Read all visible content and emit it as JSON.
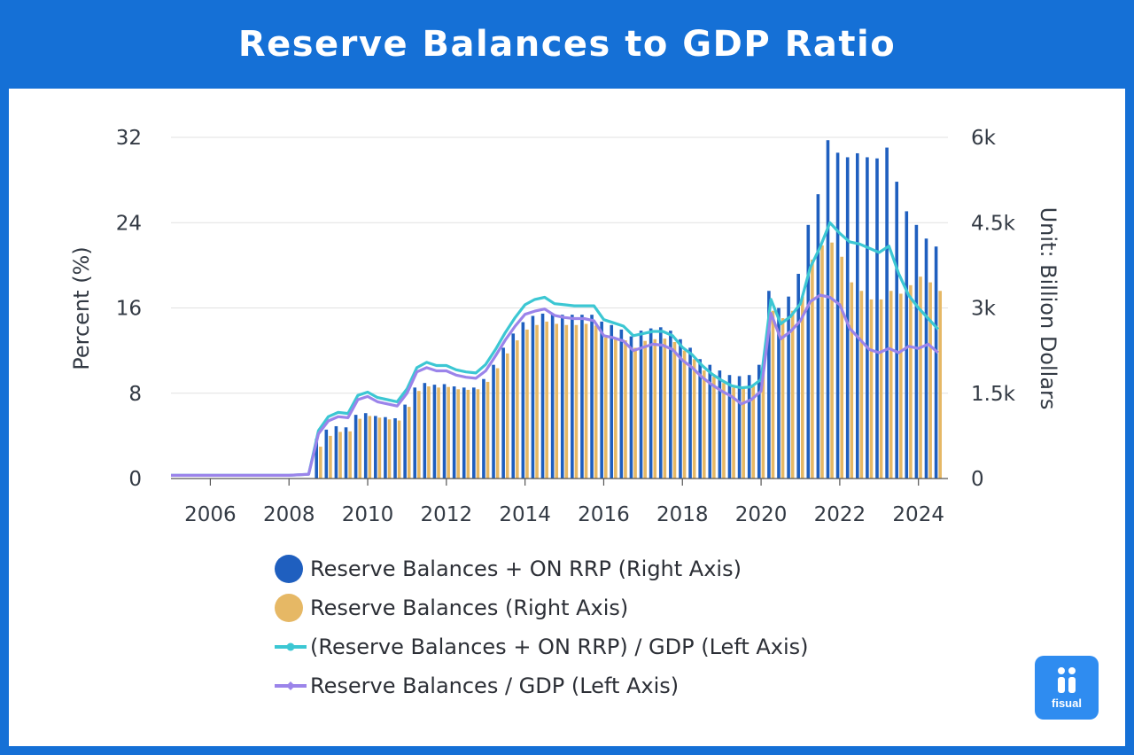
{
  "header": {
    "title": "Reserve Balances to GDP Ratio"
  },
  "brand": {
    "logo_text": "fisual",
    "logo_icon": "fisual-logo-icon"
  },
  "colors": {
    "background": "#1570d6",
    "bars_total": "#1f5fbf",
    "bars_reserve": "#e6b865",
    "line_total": "#3cc7d3",
    "line_reserve": "#9b84ea",
    "grid": "#e1e1e1"
  },
  "chart_data": {
    "type": "bar",
    "title": "Reserve Balances to GDP Ratio",
    "ylabel": "Percent (%)",
    "y2label": "Unit: Billion Dollars",
    "ylim": [
      0,
      32
    ],
    "y2lim": [
      0,
      6000
    ],
    "yticks": [
      "0",
      "8",
      "16",
      "24",
      "32"
    ],
    "y2ticks": [
      "0",
      "1.5k",
      "3k",
      "4.5k",
      "6k"
    ],
    "xticks": [
      "2006",
      "2008",
      "2010",
      "2012",
      "2014",
      "2016",
      "2018",
      "2020",
      "2022",
      "2024"
    ],
    "xlim": [
      2005.0,
      2024.75
    ],
    "legend_position": "bottom",
    "grid": true,
    "series": [
      {
        "name": "Reserve Balances + ON RRP (Right Axis)",
        "type": "bar",
        "axis": "right",
        "x": [
          2008.75,
          2009.0,
          2009.25,
          2009.5,
          2009.75,
          2010.0,
          2010.25,
          2010.5,
          2010.75,
          2011.0,
          2011.25,
          2011.5,
          2011.75,
          2012.0,
          2012.25,
          2012.5,
          2012.75,
          2013.0,
          2013.25,
          2013.5,
          2013.75,
          2014.0,
          2014.25,
          2014.5,
          2014.75,
          2015.0,
          2015.25,
          2015.5,
          2015.75,
          2016.0,
          2016.25,
          2016.5,
          2016.75,
          2017.0,
          2017.25,
          2017.5,
          2017.75,
          2018.0,
          2018.25,
          2018.5,
          2018.75,
          2019.0,
          2019.25,
          2019.5,
          2019.75,
          2020.0,
          2020.25,
          2020.5,
          2020.75,
          2021.0,
          2021.25,
          2021.5,
          2021.75,
          2022.0,
          2022.25,
          2022.5,
          2022.75,
          2023.0,
          2023.25,
          2023.5,
          2023.75,
          2024.0,
          2024.25,
          2024.5
        ],
        "values": [
          700,
          860,
          920,
          900,
          1120,
          1150,
          1100,
          1080,
          1060,
          1300,
          1600,
          1680,
          1650,
          1660,
          1620,
          1600,
          1600,
          1750,
          2000,
          2300,
          2550,
          2750,
          2860,
          2900,
          2880,
          2880,
          2880,
          2880,
          2880,
          2760,
          2700,
          2620,
          2500,
          2600,
          2640,
          2660,
          2600,
          2450,
          2300,
          2100,
          2000,
          1900,
          1820,
          1800,
          1820,
          2000,
          3300,
          3000,
          3200,
          3600,
          4460,
          5000,
          5950,
          5730,
          5650,
          5720,
          5650,
          5630,
          5820,
          5220,
          4700,
          4460,
          4220,
          4080
        ]
      },
      {
        "name": "Reserve Balances (Right Axis)",
        "type": "bar",
        "axis": "right",
        "x": [
          2008.75,
          2009.0,
          2009.25,
          2009.5,
          2009.75,
          2010.0,
          2010.25,
          2010.5,
          2010.75,
          2011.0,
          2011.25,
          2011.5,
          2011.75,
          2012.0,
          2012.25,
          2012.5,
          2012.75,
          2013.0,
          2013.25,
          2013.5,
          2013.75,
          2014.0,
          2014.25,
          2014.5,
          2014.75,
          2015.0,
          2015.25,
          2015.5,
          2015.75,
          2016.0,
          2016.25,
          2016.5,
          2016.75,
          2017.0,
          2017.25,
          2017.5,
          2017.75,
          2018.0,
          2018.25,
          2018.5,
          2018.75,
          2019.0,
          2019.25,
          2019.5,
          2019.75,
          2020.0,
          2020.25,
          2020.5,
          2020.75,
          2021.0,
          2021.25,
          2021.5,
          2021.75,
          2022.0,
          2022.25,
          2022.5,
          2022.75,
          2023.0,
          2023.25,
          2023.5,
          2023.75,
          2024.0,
          2024.25,
          2024.5
        ],
        "values": [
          560,
          750,
          820,
          830,
          1050,
          1100,
          1070,
          1040,
          1020,
          1260,
          1540,
          1620,
          1600,
          1610,
          1570,
          1560,
          1570,
          1700,
          1940,
          2200,
          2430,
          2620,
          2700,
          2760,
          2720,
          2700,
          2700,
          2720,
          2690,
          2480,
          2460,
          2430,
          2300,
          2420,
          2450,
          2460,
          2400,
          2250,
          2100,
          1900,
          1790,
          1680,
          1600,
          1580,
          1620,
          1850,
          2950,
          2820,
          2950,
          3200,
          3850,
          4100,
          4150,
          3900,
          3450,
          3300,
          3150,
          3150,
          3300,
          3250,
          3400,
          3550,
          3450,
          3300
        ]
      },
      {
        "name": "(Reserve Balances + ON RRP) / GDP (Left Axis)",
        "type": "line",
        "axis": "left",
        "x": [
          2005.0,
          2005.5,
          2006.0,
          2006.5,
          2007.0,
          2007.5,
          2008.0,
          2008.5,
          2008.75,
          2009.0,
          2009.25,
          2009.5,
          2009.75,
          2010.0,
          2010.25,
          2010.5,
          2010.75,
          2011.0,
          2011.25,
          2011.5,
          2011.75,
          2012.0,
          2012.25,
          2012.5,
          2012.75,
          2013.0,
          2013.25,
          2013.5,
          2013.75,
          2014.0,
          2014.25,
          2014.5,
          2014.75,
          2015.0,
          2015.25,
          2015.5,
          2015.75,
          2016.0,
          2016.25,
          2016.5,
          2016.75,
          2017.0,
          2017.25,
          2017.5,
          2017.75,
          2018.0,
          2018.25,
          2018.5,
          2018.75,
          2019.0,
          2019.25,
          2019.5,
          2019.75,
          2020.0,
          2020.25,
          2020.5,
          2020.75,
          2021.0,
          2021.25,
          2021.5,
          2021.75,
          2022.0,
          2022.25,
          2022.5,
          2022.75,
          2023.0,
          2023.25,
          2023.5,
          2023.75,
          2024.0,
          2024.25,
          2024.5
        ],
        "values": [
          0.3,
          0.3,
          0.3,
          0.3,
          0.3,
          0.3,
          0.3,
          0.4,
          4.5,
          5.8,
          6.2,
          6.1,
          7.8,
          8.1,
          7.6,
          7.4,
          7.2,
          8.4,
          10.4,
          10.9,
          10.6,
          10.6,
          10.2,
          10.0,
          9.9,
          10.7,
          12.1,
          13.7,
          15.1,
          16.3,
          16.8,
          17.0,
          16.4,
          16.3,
          16.2,
          16.2,
          16.2,
          14.9,
          14.6,
          14.3,
          13.4,
          13.6,
          13.8,
          13.8,
          13.4,
          12.3,
          11.6,
          10.6,
          9.8,
          9.2,
          8.7,
          8.5,
          8.6,
          9.3,
          16.8,
          14.5,
          15.2,
          16.4,
          19.8,
          21.7,
          24.0,
          23.0,
          22.2,
          22.0,
          21.6,
          21.2,
          21.8,
          19.2,
          17.2,
          16.0,
          15.0,
          14.0
        ]
      },
      {
        "name": "Reserve Balances / GDP (Left Axis)",
        "type": "line",
        "axis": "left",
        "x": [
          2005.0,
          2005.5,
          2006.0,
          2006.5,
          2007.0,
          2007.5,
          2008.0,
          2008.5,
          2008.75,
          2009.0,
          2009.25,
          2009.5,
          2009.75,
          2010.0,
          2010.25,
          2010.5,
          2010.75,
          2011.0,
          2011.25,
          2011.5,
          2011.75,
          2012.0,
          2012.25,
          2012.5,
          2012.75,
          2013.0,
          2013.25,
          2013.5,
          2013.75,
          2014.0,
          2014.25,
          2014.5,
          2014.75,
          2015.0,
          2015.25,
          2015.5,
          2015.75,
          2016.0,
          2016.25,
          2016.5,
          2016.75,
          2017.0,
          2017.25,
          2017.5,
          2017.75,
          2018.0,
          2018.25,
          2018.5,
          2018.75,
          2019.0,
          2019.25,
          2019.5,
          2019.75,
          2020.0,
          2020.25,
          2020.5,
          2020.75,
          2021.0,
          2021.25,
          2021.5,
          2021.75,
          2022.0,
          2022.25,
          2022.5,
          2022.75,
          2023.0,
          2023.25,
          2023.5,
          2023.75,
          2024.0,
          2024.25,
          2024.5
        ],
        "values": [
          0.3,
          0.3,
          0.3,
          0.3,
          0.3,
          0.3,
          0.3,
          0.4,
          4.2,
          5.4,
          5.8,
          5.7,
          7.4,
          7.7,
          7.2,
          7.0,
          6.8,
          8.0,
          10.0,
          10.4,
          10.1,
          10.1,
          9.7,
          9.5,
          9.4,
          10.1,
          11.5,
          13.0,
          14.3,
          15.4,
          15.7,
          15.9,
          15.3,
          15.1,
          15.0,
          15.0,
          14.8,
          13.4,
          13.2,
          12.9,
          12.0,
          12.3,
          12.6,
          12.5,
          12.1,
          11.1,
          10.4,
          9.5,
          8.8,
          8.2,
          7.7,
          7.0,
          7.4,
          8.2,
          15.5,
          13.1,
          13.8,
          14.8,
          16.6,
          17.2,
          17.0,
          16.3,
          14.1,
          13.1,
          12.1,
          11.8,
          12.2,
          11.8,
          12.4,
          12.2,
          12.6,
          11.8
        ]
      }
    ]
  }
}
